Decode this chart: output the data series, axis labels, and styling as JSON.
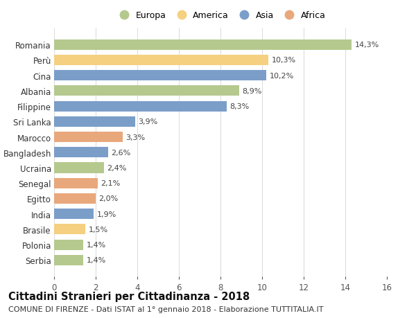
{
  "countries": [
    "Romania",
    "Perù",
    "Cina",
    "Albania",
    "Filippine",
    "Sri Lanka",
    "Marocco",
    "Bangladesh",
    "Ucraina",
    "Senegal",
    "Egitto",
    "India",
    "Brasile",
    "Polonia",
    "Serbia"
  ],
  "values": [
    14.3,
    10.3,
    10.2,
    8.9,
    8.3,
    3.9,
    3.3,
    2.6,
    2.4,
    2.1,
    2.0,
    1.9,
    1.5,
    1.4,
    1.4
  ],
  "labels": [
    "14,3%",
    "10,3%",
    "10,2%",
    "8,9%",
    "8,3%",
    "3,9%",
    "3,3%",
    "2,6%",
    "2,4%",
    "2,1%",
    "2,0%",
    "1,9%",
    "1,5%",
    "1,4%",
    "1,4%"
  ],
  "continents": [
    "Europa",
    "America",
    "Asia",
    "Europa",
    "Asia",
    "Asia",
    "Africa",
    "Asia",
    "Europa",
    "Africa",
    "Africa",
    "Asia",
    "America",
    "Europa",
    "Europa"
  ],
  "colors": {
    "Europa": "#b5c98e",
    "America": "#f5d080",
    "Asia": "#7b9ec9",
    "Africa": "#e8a87c"
  },
  "xlim": [
    0,
    16
  ],
  "xticks": [
    0,
    2,
    4,
    6,
    8,
    10,
    12,
    14,
    16
  ],
  "background_color": "#ffffff",
  "grid_color": "#dddddd",
  "title": "Cittadini Stranieri per Cittadinanza - 2018",
  "subtitle": "COMUNE DI FIRENZE - Dati ISTAT al 1° gennaio 2018 - Elaborazione TUTTITALIA.IT",
  "title_fontsize": 10.5,
  "subtitle_fontsize": 8,
  "bar_height": 0.68,
  "legend_labels": [
    "Europa",
    "America",
    "Asia",
    "Africa"
  ]
}
